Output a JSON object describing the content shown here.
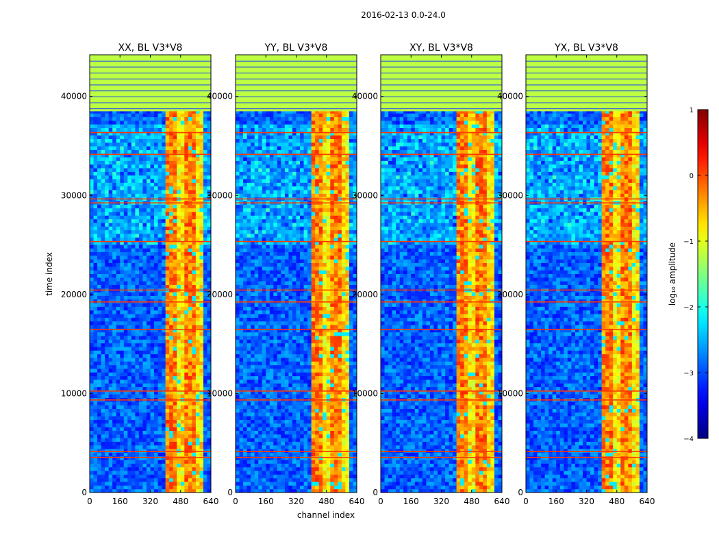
{
  "figure_title": "2016-02-13 0.0-24.0",
  "shared_xlabel": "channel index",
  "shared_ylabel": "time index",
  "colorbar": {
    "label": "log₁₀ amplitude",
    "range": [
      -4,
      1
    ],
    "ticks": [
      1,
      0,
      -1,
      -2,
      -3,
      -4
    ],
    "tick_labels": [
      "1",
      "0",
      "−1",
      "−2",
      "−3",
      "−4"
    ],
    "colormap": "jet"
  },
  "chart_data": [
    {
      "type": "heatmap",
      "title": "XX, BL V3*V8",
      "xlabel": "channel index",
      "ylabel": "time index",
      "xlim": [
        0,
        640
      ],
      "ylim": [
        0,
        44200
      ],
      "xticks": [
        0,
        160,
        320,
        480,
        640
      ],
      "xtick_labels": [
        "0",
        "160",
        "320",
        "480",
        "640"
      ],
      "yticks": [
        0,
        10000,
        20000,
        30000,
        40000
      ],
      "ytick_labels": [
        "0",
        "10000",
        "20000",
        "30000",
        "40000"
      ],
      "flagged_time_range": [
        38500,
        44200
      ],
      "flagged_value": -1.2,
      "background_level": -3.3,
      "band_channels": [
        [
          400,
          600
        ]
      ],
      "rfi_rows": [
        3600,
        4200,
        9400,
        10300,
        16500,
        19300,
        20500,
        25400,
        29300,
        29700,
        34200,
        36400
      ]
    },
    {
      "type": "heatmap",
      "title": "YY, BL V3*V8",
      "xlabel": "channel index",
      "ylabel": "",
      "xlim": [
        0,
        640
      ],
      "ylim": [
        0,
        44200
      ],
      "xticks": [
        0,
        160,
        320,
        480,
        640
      ],
      "xtick_labels": [
        "0",
        "160",
        "320",
        "480",
        "640"
      ],
      "yticks": [
        0,
        10000,
        20000,
        30000,
        40000
      ],
      "ytick_labels": [
        "0",
        "10000",
        "20000",
        "30000",
        "40000"
      ],
      "flagged_time_range": [
        38500,
        44200
      ],
      "flagged_value": -1.2,
      "background_level": -3.3,
      "band_channels": [
        [
          400,
          600
        ]
      ],
      "rfi_rows": [
        3600,
        4200,
        9400,
        10300,
        16500,
        19300,
        20500,
        25400,
        29300,
        29700,
        34200,
        36400
      ]
    },
    {
      "type": "heatmap",
      "title": "XY, BL V3*V8",
      "xlabel": "channel index",
      "ylabel": "",
      "xlim": [
        0,
        640
      ],
      "ylim": [
        0,
        44200
      ],
      "xticks": [
        0,
        160,
        320,
        480,
        640
      ],
      "xtick_labels": [
        "0",
        "160",
        "320",
        "480",
        "640"
      ],
      "yticks": [
        0,
        10000,
        20000,
        30000,
        40000
      ],
      "ytick_labels": [
        "0",
        "10000",
        "20000",
        "30000",
        "40000"
      ],
      "flagged_time_range": [
        38500,
        44200
      ],
      "flagged_value": -1.2,
      "background_level": -3.3,
      "band_channels": [
        [
          400,
          600
        ]
      ],
      "rfi_rows": [
        3600,
        4200,
        9400,
        10300,
        16500,
        19300,
        20500,
        25400,
        29300,
        29700,
        34200,
        36400
      ]
    },
    {
      "type": "heatmap",
      "title": "YX, BL V3*V8",
      "xlabel": "channel index",
      "ylabel": "",
      "xlim": [
        0,
        640
      ],
      "ylim": [
        0,
        44200
      ],
      "xticks": [
        0,
        160,
        320,
        480,
        640
      ],
      "xtick_labels": [
        "0",
        "160",
        "320",
        "480",
        "640"
      ],
      "yticks": [
        0,
        10000,
        20000,
        30000,
        40000
      ],
      "ytick_labels": [
        "0",
        "10000",
        "20000",
        "30000",
        "40000"
      ],
      "flagged_time_range": [
        38500,
        44200
      ],
      "flagged_value": -1.2,
      "background_level": -3.3,
      "band_channels": [
        [
          400,
          600
        ]
      ],
      "rfi_rows": [
        3600,
        4200,
        9400,
        10300,
        16500,
        19300,
        20500,
        25400,
        29300,
        29700,
        34200,
        36400
      ]
    }
  ]
}
